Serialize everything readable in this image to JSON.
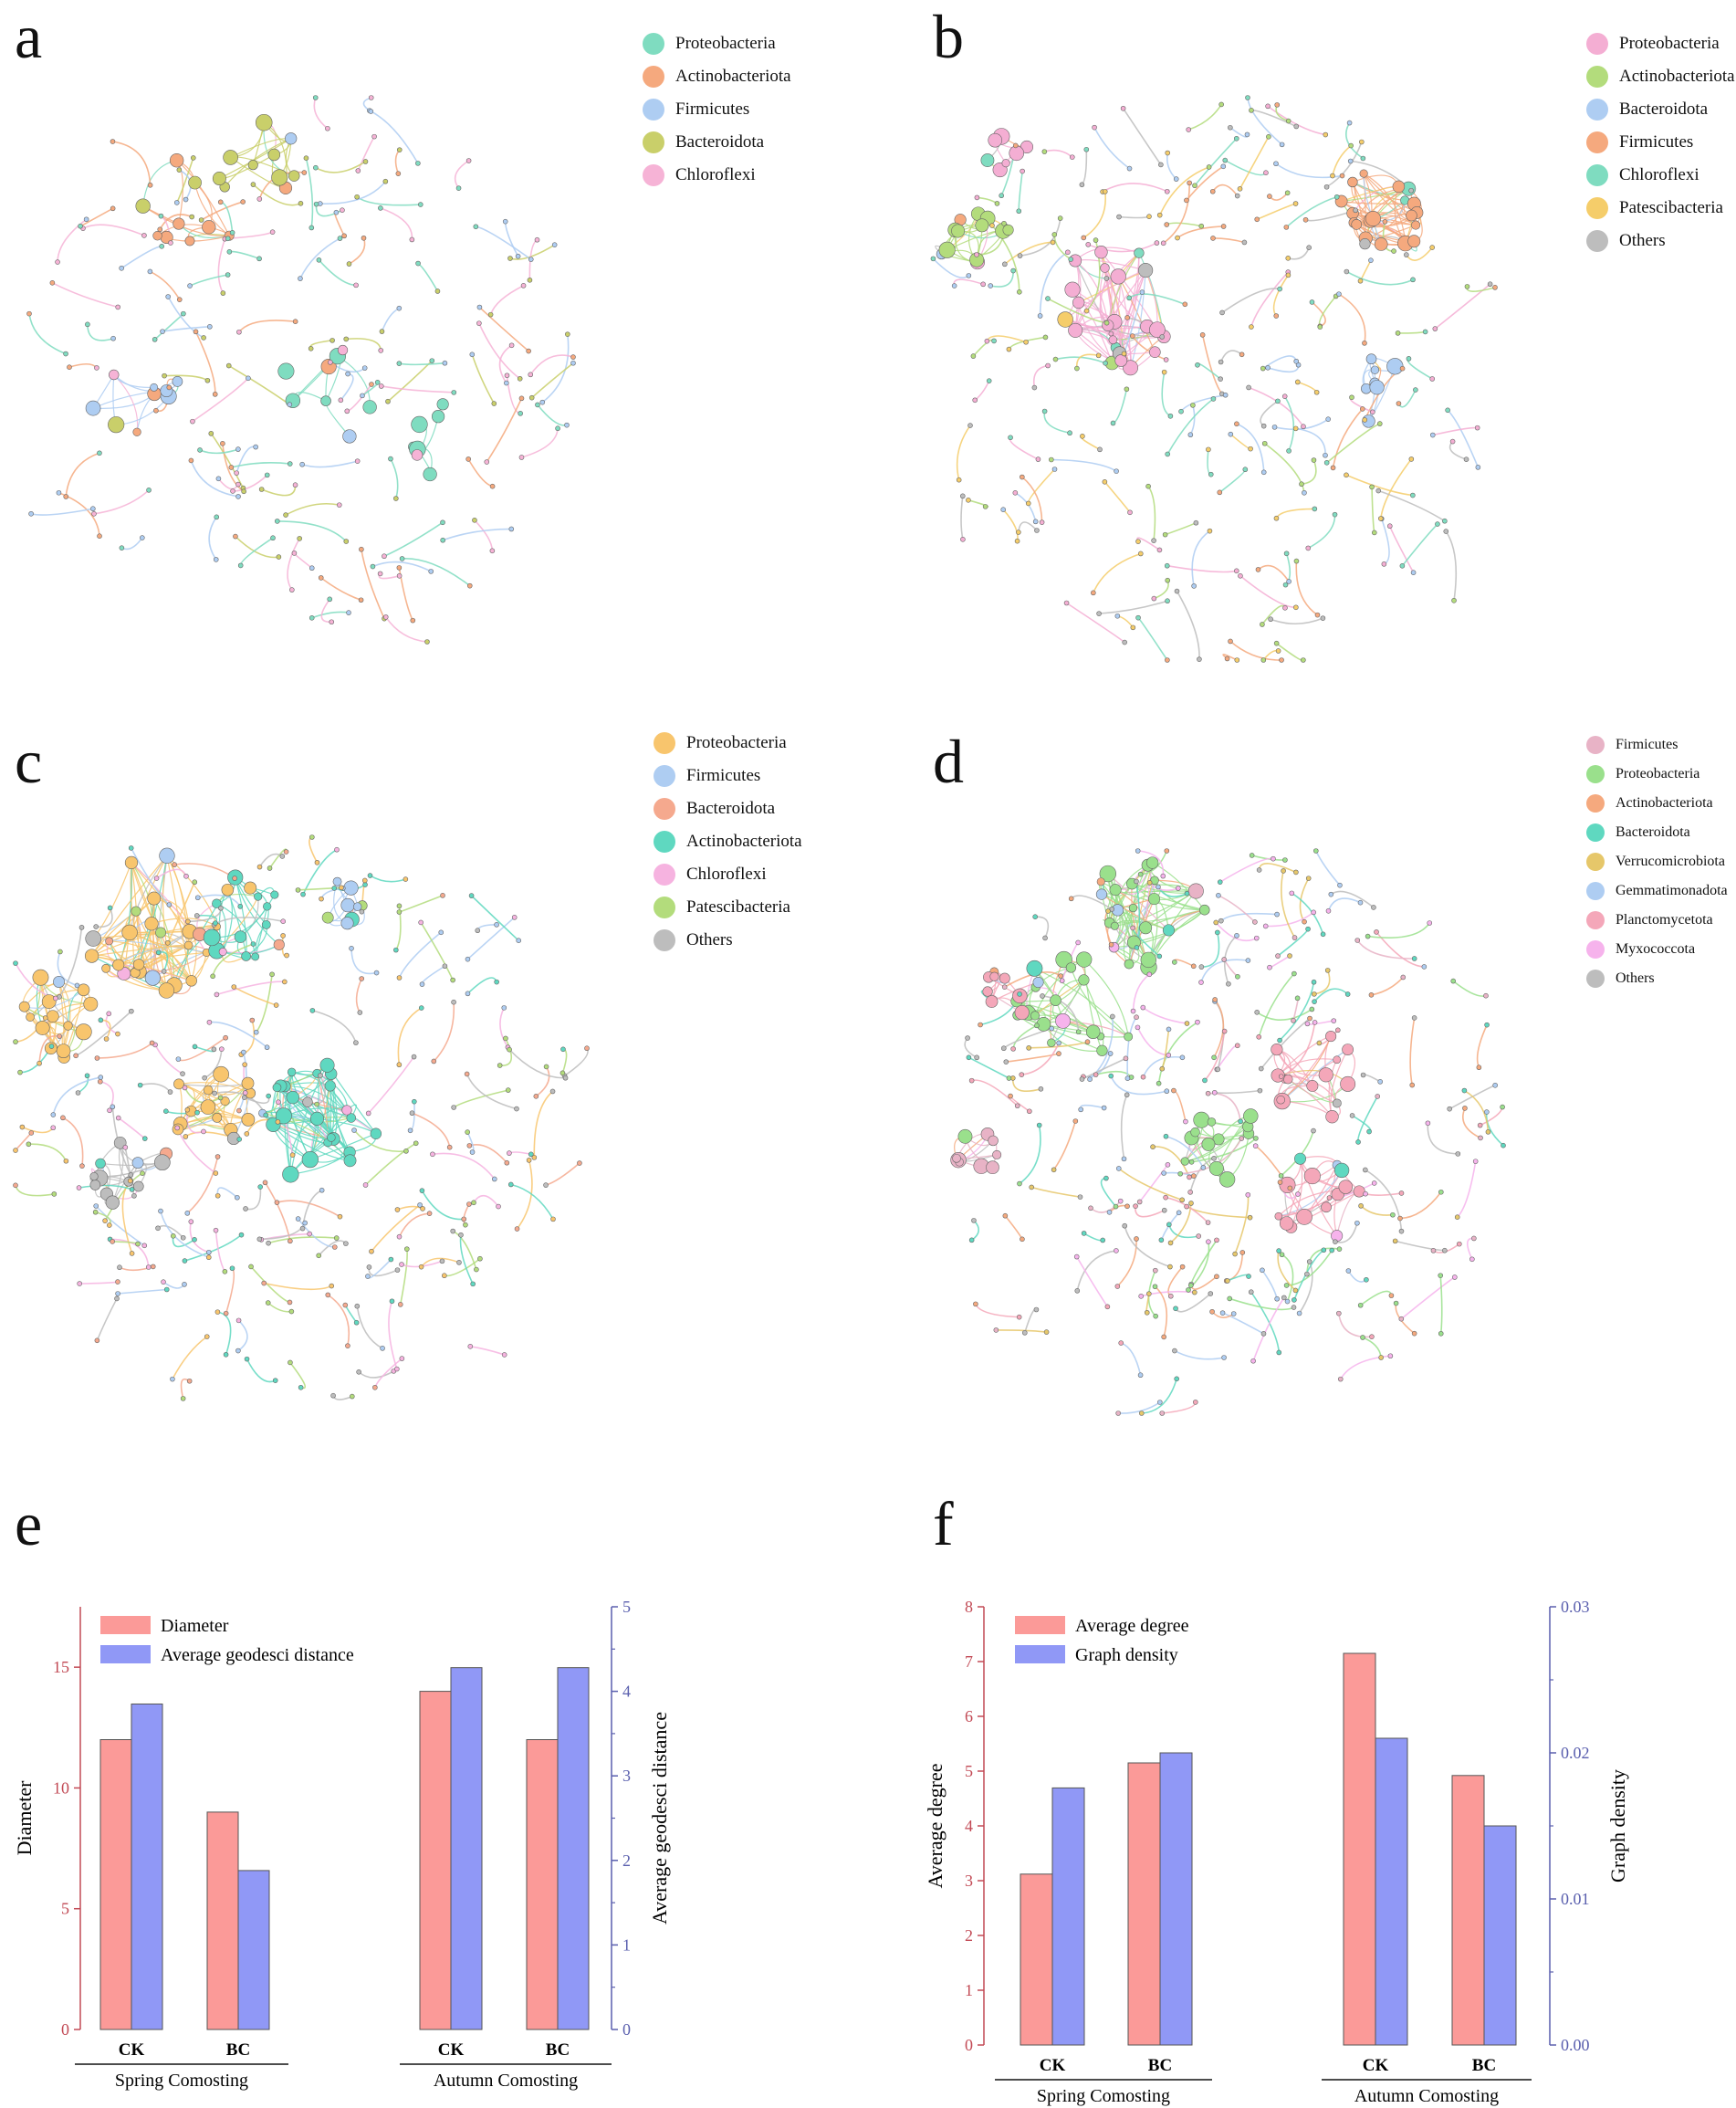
{
  "panels": {
    "a": {
      "label": "a",
      "legend": [
        {
          "name": "Proteobacteria",
          "color": "#7fdcc0"
        },
        {
          "name": "Actinobacteriota",
          "color": "#f5a97e"
        },
        {
          "name": "Firmicutes",
          "color": "#aecdf2"
        },
        {
          "name": "Bacteroidota",
          "color": "#c9cf6a"
        },
        {
          "name": "Chloroflexi",
          "color": "#f6b3d6"
        }
      ]
    },
    "b": {
      "label": "b",
      "legend": [
        {
          "name": "Proteobacteria",
          "color": "#f4aed3"
        },
        {
          "name": "Actinobacteriota",
          "color": "#b3dc7c"
        },
        {
          "name": "Bacteroidota",
          "color": "#aecdf2"
        },
        {
          "name": "Firmicutes",
          "color": "#f5a97e"
        },
        {
          "name": "Chloroflexi",
          "color": "#7fdcc0"
        },
        {
          "name": "Patescibacteria",
          "color": "#f5cd6a"
        },
        {
          "name": "Others",
          "color": "#bdbdbd"
        }
      ]
    },
    "c": {
      "label": "c",
      "legend": [
        {
          "name": "Proteobacteria",
          "color": "#f8c56d"
        },
        {
          "name": "Firmicutes",
          "color": "#aecdf2"
        },
        {
          "name": "Bacteroidota",
          "color": "#f5a98e"
        },
        {
          "name": "Actinobacteriota",
          "color": "#5fd8c0"
        },
        {
          "name": "Chloroflexi",
          "color": "#f6b3e0"
        },
        {
          "name": "Patescibacteria",
          "color": "#b3dc7c"
        },
        {
          "name": "Others",
          "color": "#bdbdbd"
        }
      ]
    },
    "d": {
      "label": "d",
      "legend": [
        {
          "name": "Firmicutes",
          "color": "#e8b3c6"
        },
        {
          "name": "Proteobacteria",
          "color": "#9ae08c"
        },
        {
          "name": "Actinobacteriota",
          "color": "#f5a97e"
        },
        {
          "name": "Bacteroidota",
          "color": "#5fd8c0"
        },
        {
          "name": "Verrucomicrobiota",
          "color": "#e6c76a"
        },
        {
          "name": "Gemmatimonadota",
          "color": "#aecdf2"
        },
        {
          "name": "Planctomycetota",
          "color": "#f4a7b9"
        },
        {
          "name": "Myxococcota",
          "color": "#f6b3ec"
        },
        {
          "name": "Others",
          "color": "#bdbdbd"
        }
      ]
    },
    "e": {
      "label": "e"
    },
    "f": {
      "label": "f"
    }
  },
  "chart_data": [
    {
      "id": "e",
      "type": "bar",
      "groups": [
        "Spring Comosting",
        "Autumn Comosting"
      ],
      "categories": [
        "CK",
        "BC",
        "CK",
        "BC"
      ],
      "series": [
        {
          "name": "Diameter",
          "axis": "left",
          "color": "#fb9a98",
          "values": [
            12,
            9,
            14,
            12
          ]
        },
        {
          "name": "Average geodesci distance",
          "axis": "right",
          "color": "#9098f6",
          "values": [
            3.85,
            1.88,
            4.28,
            4.28
          ]
        }
      ],
      "ylabel": "Diameter",
      "ylabel_right": "Average geodesci distance",
      "ylim": [
        0,
        17.5
      ],
      "ylim_right": [
        0,
        5
      ],
      "yticks": [
        "0",
        "5",
        "10",
        "15"
      ],
      "yticks_right": [
        "0",
        "1",
        "2",
        "3",
        "4",
        "5"
      ],
      "left_axis_color": "#c24a55",
      "right_axis_color": "#5a5fae"
    },
    {
      "id": "f",
      "type": "bar",
      "groups": [
        "Spring Comosting",
        "Autumn Comosting"
      ],
      "categories": [
        "CK",
        "BC",
        "CK",
        "BC"
      ],
      "series": [
        {
          "name": "Average degree",
          "axis": "left",
          "color": "#fb9a98",
          "values": [
            3.12,
            5.15,
            7.15,
            4.92
          ]
        },
        {
          "name": "Graph density",
          "axis": "right",
          "color": "#9098f6",
          "values": [
            0.0176,
            0.02,
            0.021,
            0.015
          ]
        }
      ],
      "ylabel": "Average degree",
      "ylabel_right": "Graph density",
      "ylim": [
        0,
        8
      ],
      "ylim_right": [
        0,
        0.03
      ],
      "yticks": [
        "0",
        "1",
        "2",
        "3",
        "4",
        "5",
        "6",
        "7",
        "8"
      ],
      "yticks_right": [
        "0.00",
        "0.01",
        "0.02",
        "0.03"
      ],
      "left_axis_color": "#c24a55",
      "right_axis_color": "#5a5fae"
    }
  ]
}
